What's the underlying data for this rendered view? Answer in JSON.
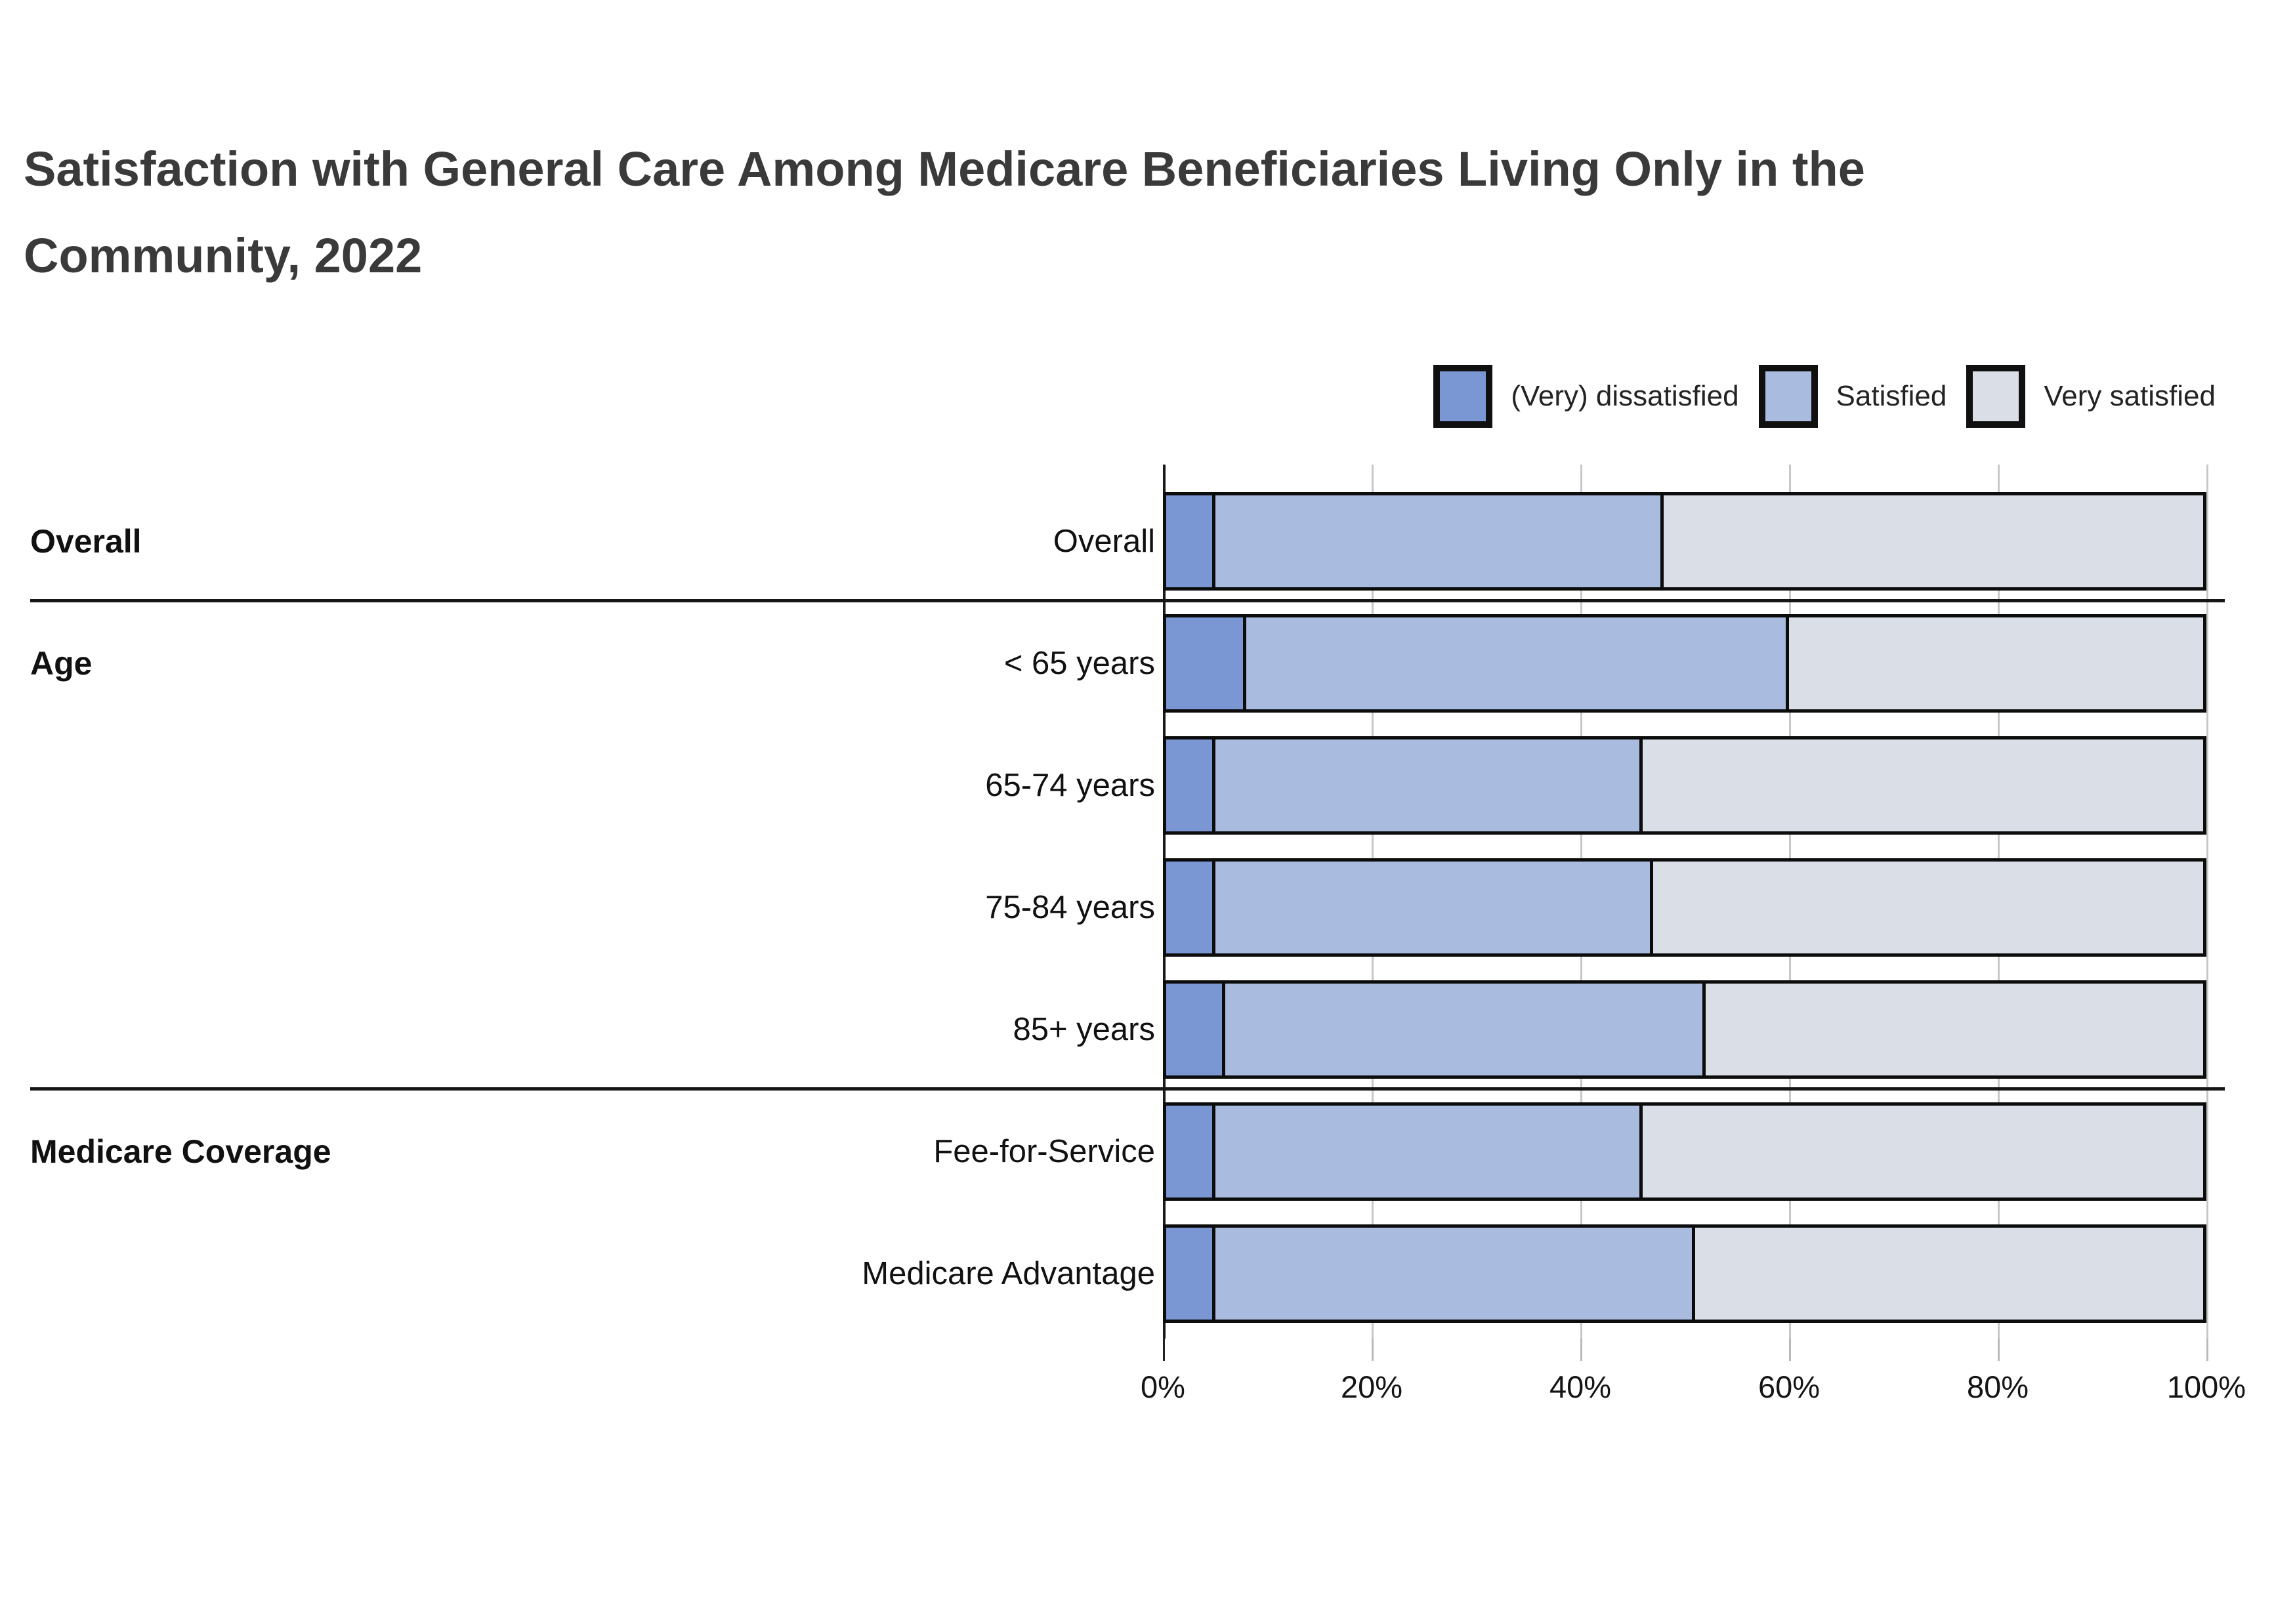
{
  "title": "Satisfaction with General Care Among Medicare Beneficiaries Living Only in the Community, 2022",
  "colors": {
    "dissatisfied": "#7B97D3",
    "satisfied": "#A9BCDF",
    "very_satisfied": "#D9DEE7",
    "bar_border": "#0c0c0c",
    "gridline": "#c7c7c7",
    "title_text": "#3a3a3a"
  },
  "legend": {
    "items": [
      {
        "label": "(Very) dissatisfied",
        "color": "#7B97D3"
      },
      {
        "label": "Satisfied",
        "color": "#A9BCDF"
      },
      {
        "label": "Very satisfied",
        "color": "#D9DEE7"
      }
    ]
  },
  "chart_data": {
    "type": "bar",
    "orientation": "horizontal_stacked",
    "title": "Satisfaction with General Care Among Medicare Beneficiaries Living Only in the Community, 2022",
    "categories": [
      "Overall",
      "< 65 years",
      "65-74 years",
      "75-84 years",
      "85+ years",
      "Fee-for-Service",
      "Medicare Advantage"
    ],
    "groups": [
      {
        "name": "Overall",
        "first_row": 0
      },
      {
        "name": "Age",
        "first_row": 1
      },
      {
        "name": "Medicare Coverage",
        "first_row": 5
      }
    ],
    "series": [
      {
        "name": "(Very) dissatisfied",
        "color": "#7B97D3",
        "values": [
          5,
          8,
          5,
          5,
          6,
          5,
          5
        ]
      },
      {
        "name": "Satisfied",
        "color": "#A9BCDF",
        "values": [
          43,
          52,
          41,
          42,
          46,
          41,
          46
        ]
      },
      {
        "name": "Very satisfied",
        "color": "#D9DEE7",
        "values": [
          52,
          40,
          54,
          53,
          48,
          54,
          49
        ]
      }
    ],
    "xlabel": "",
    "ylabel": "",
    "xlim": [
      0,
      100
    ],
    "x_ticks": [
      0,
      20,
      40,
      60,
      80,
      100
    ],
    "x_tick_labels": [
      "0%",
      "20%",
      "40%",
      "60%",
      "80%",
      "100%"
    ],
    "grid": "vertical",
    "legend_position": "top-right"
  }
}
